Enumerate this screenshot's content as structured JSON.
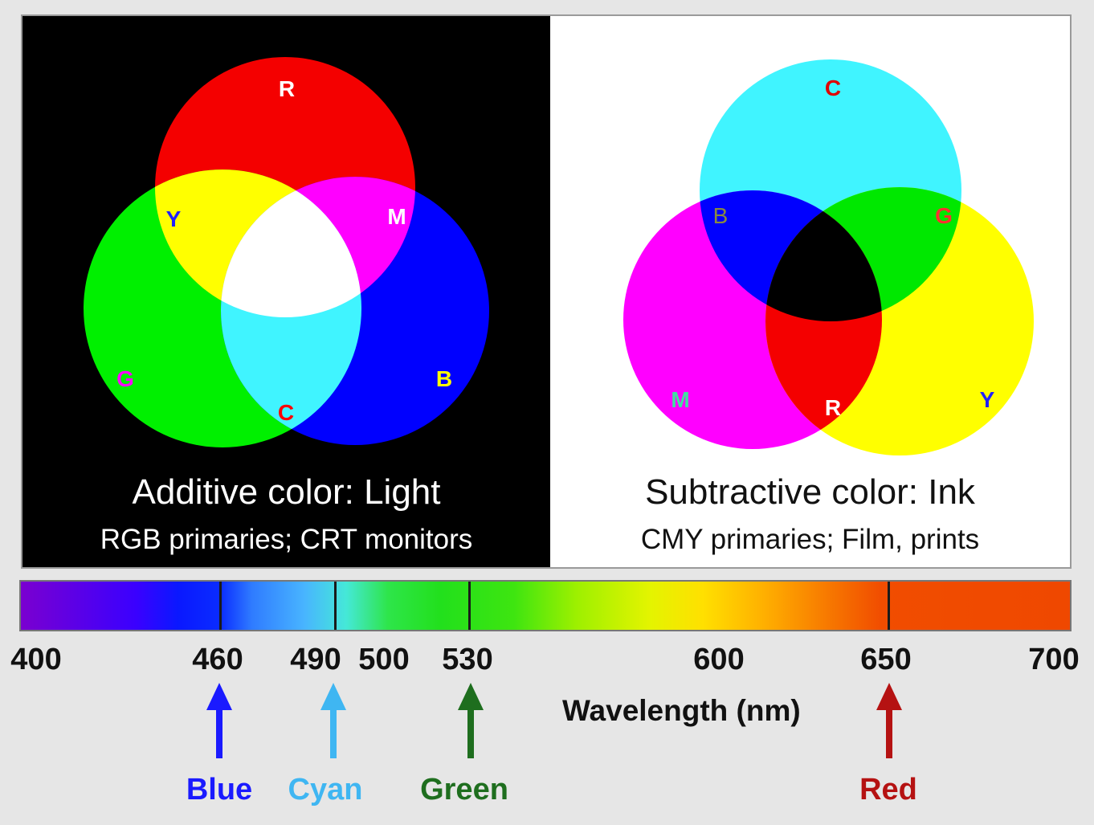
{
  "additive": {
    "title": "Additive color: Light",
    "subtitle": "RGB primaries; CRT monitors",
    "labels": {
      "r": "R",
      "g": "G",
      "b": "B",
      "y": "Y",
      "m": "M",
      "c": "C"
    }
  },
  "subtractive": {
    "title": "Subtractive color: Ink",
    "subtitle": "CMY primaries; Film, prints",
    "labels": {
      "c": "C",
      "m": "M",
      "y": "Y",
      "b": "B",
      "g": "G",
      "r": "R"
    }
  },
  "spectrum": {
    "min_nm": 400,
    "max_nm": 700,
    "ticks": [
      "400",
      "460",
      "490",
      "500",
      "530",
      "600",
      "650",
      "700"
    ],
    "tick_lines_nm": [
      460,
      493,
      530,
      650
    ],
    "axis_label": "Wavelength (nm)",
    "markers": [
      {
        "label": "Blue",
        "nm": 460,
        "color": "#1a1aff"
      },
      {
        "label": "Cyan",
        "nm": 493,
        "color": "#3fb6f2"
      },
      {
        "label": "Green",
        "nm": 530,
        "color": "#1e6e1e"
      },
      {
        "label": "Red",
        "nm": 650,
        "color": "#b51212"
      }
    ]
  },
  "colors": {
    "red": "#ff0000",
    "green": "#00ff00",
    "blue": "#0000ff",
    "cyan": "#40f4ff",
    "magenta": "#ff00ff",
    "yellow": "#ffff00"
  }
}
